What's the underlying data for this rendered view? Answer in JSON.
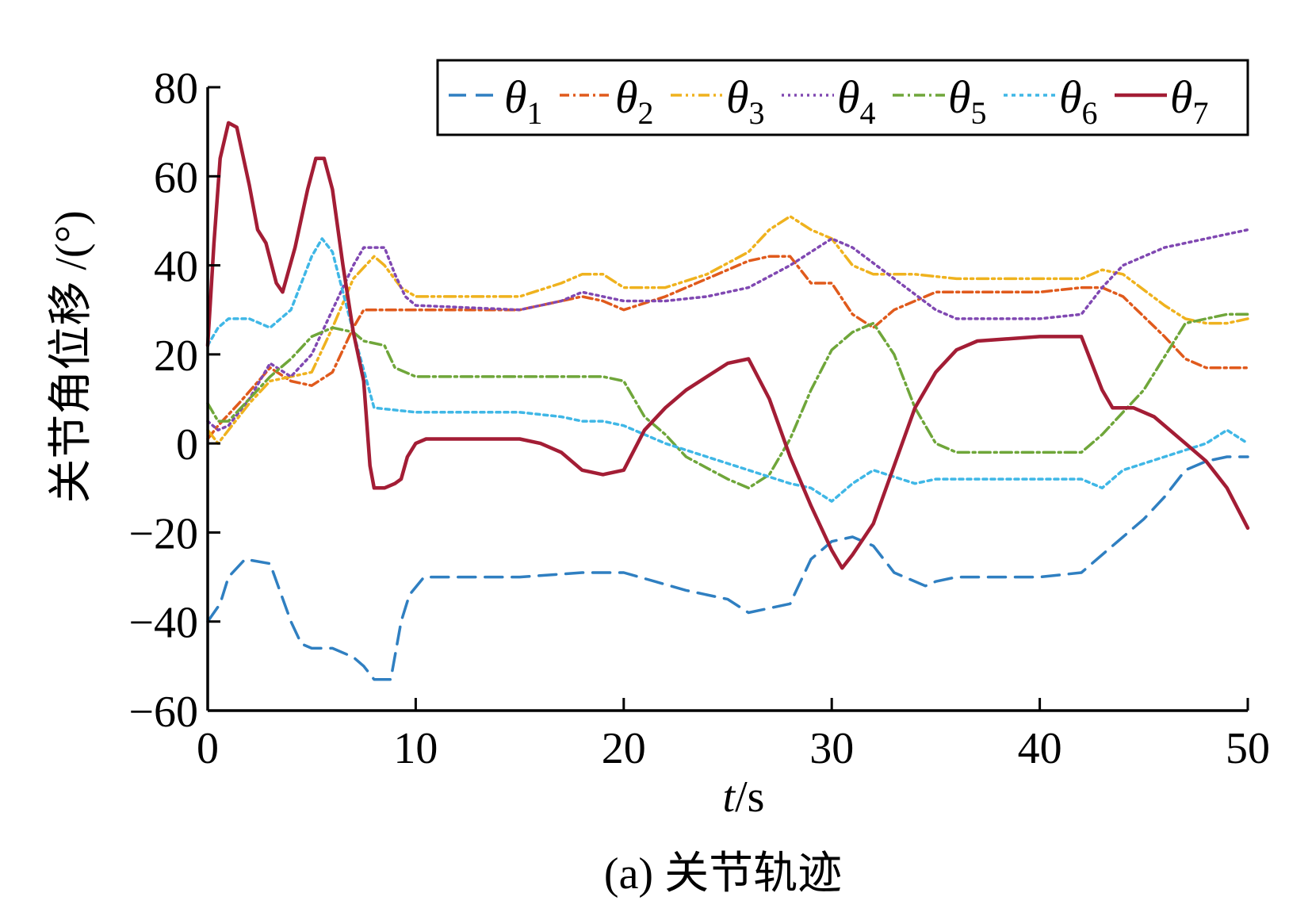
{
  "caption": "(a) 关节轨迹",
  "chart_data": {
    "type": "line",
    "title": "",
    "xlabel_italic": "t",
    "xlabel_rest": "/s",
    "ylabel": "关节角位移 /(°)",
    "xlim": [
      0,
      50
    ],
    "ylim": [
      -60,
      80
    ],
    "x_ticks": [
      0,
      10,
      20,
      30,
      40,
      50
    ],
    "y_ticks": [
      80,
      60,
      40,
      20,
      0,
      -20,
      -40,
      -60
    ],
    "x_tick_labels": [
      "0",
      "10",
      "20",
      "30",
      "40",
      "50"
    ],
    "y_tick_labels": [
      "80",
      "60",
      "40",
      "20",
      "0",
      "−20",
      "−40",
      "−60"
    ],
    "grid": false,
    "legend_position": "top-right",
    "series": [
      {
        "name": "θ1",
        "symbol": "θ",
        "subscript": "1",
        "color": "#2f7fc1",
        "dash": "22,12",
        "points": [
          [
            0,
            -40
          ],
          [
            0.6,
            -36
          ],
          [
            1,
            -30
          ],
          [
            1.8,
            -26
          ],
          [
            3,
            -27
          ],
          [
            4,
            -40
          ],
          [
            4.5,
            -45
          ],
          [
            5,
            -46
          ],
          [
            6,
            -46
          ],
          [
            7,
            -48
          ],
          [
            7.5,
            -50
          ],
          [
            8,
            -53
          ],
          [
            8.8,
            -53
          ],
          [
            9.3,
            -40
          ],
          [
            9.7,
            -34
          ],
          [
            10.4,
            -30
          ],
          [
            15,
            -30
          ],
          [
            18,
            -29
          ],
          [
            20,
            -29
          ],
          [
            21.5,
            -31
          ],
          [
            23,
            -33
          ],
          [
            25,
            -35
          ],
          [
            26,
            -38
          ],
          [
            27,
            -37
          ],
          [
            28,
            -36
          ],
          [
            29,
            -26
          ],
          [
            30,
            -22
          ],
          [
            31,
            -21
          ],
          [
            32,
            -23
          ],
          [
            33,
            -29
          ],
          [
            34.5,
            -32
          ],
          [
            35,
            -31
          ],
          [
            36,
            -30
          ],
          [
            40,
            -30
          ],
          [
            42,
            -29
          ],
          [
            43,
            -25
          ],
          [
            44,
            -21
          ],
          [
            45,
            -17
          ],
          [
            46,
            -12
          ],
          [
            47,
            -6
          ],
          [
            48,
            -4
          ],
          [
            49,
            -3
          ],
          [
            50,
            -3
          ]
        ]
      },
      {
        "name": "θ2",
        "symbol": "θ",
        "subscript": "2",
        "color": "#e05a1c",
        "dash": "12,5,3,5",
        "points": [
          [
            0,
            1
          ],
          [
            0.5,
            4
          ],
          [
            1.5,
            9
          ],
          [
            3,
            17
          ],
          [
            4,
            14
          ],
          [
            5,
            13
          ],
          [
            6,
            16
          ],
          [
            7,
            26
          ],
          [
            7.5,
            30
          ],
          [
            10,
            30
          ],
          [
            15,
            30
          ],
          [
            16,
            31
          ],
          [
            18,
            33
          ],
          [
            19,
            32
          ],
          [
            20,
            30
          ],
          [
            22,
            33
          ],
          [
            24,
            37
          ],
          [
            26,
            41
          ],
          [
            27,
            42
          ],
          [
            28,
            42
          ],
          [
            29,
            36
          ],
          [
            30,
            36
          ],
          [
            31,
            29
          ],
          [
            32,
            26
          ],
          [
            33,
            30
          ],
          [
            35,
            34
          ],
          [
            40,
            34
          ],
          [
            42,
            35
          ],
          [
            43,
            35
          ],
          [
            44,
            33
          ],
          [
            46,
            24
          ],
          [
            47,
            19
          ],
          [
            48,
            17
          ],
          [
            50,
            17
          ]
        ]
      },
      {
        "name": "θ3",
        "symbol": "θ",
        "subscript": "3",
        "color": "#efb21e",
        "dash": "14,5,3,5,3,5",
        "points": [
          [
            0,
            3
          ],
          [
            0.5,
            0
          ],
          [
            1,
            3
          ],
          [
            2,
            9
          ],
          [
            3,
            14
          ],
          [
            4,
            15
          ],
          [
            5,
            16
          ],
          [
            6,
            26
          ],
          [
            7,
            37
          ],
          [
            8,
            42
          ],
          [
            8.5,
            40
          ],
          [
            9.3,
            35
          ],
          [
            10,
            33
          ],
          [
            15,
            33
          ],
          [
            17,
            36
          ],
          [
            18,
            38
          ],
          [
            19,
            38
          ],
          [
            20,
            35
          ],
          [
            22,
            35
          ],
          [
            24,
            38
          ],
          [
            26,
            43
          ],
          [
            27,
            48
          ],
          [
            28,
            51
          ],
          [
            29,
            48
          ],
          [
            30,
            46
          ],
          [
            31,
            40
          ],
          [
            32,
            38
          ],
          [
            34,
            38
          ],
          [
            36,
            37
          ],
          [
            40,
            37
          ],
          [
            42,
            37
          ],
          [
            43,
            39
          ],
          [
            44,
            38
          ],
          [
            46,
            31
          ],
          [
            47,
            28
          ],
          [
            48,
            27
          ],
          [
            49,
            27
          ],
          [
            50,
            28
          ]
        ]
      },
      {
        "name": "θ4",
        "symbol": "θ",
        "subscript": "4",
        "color": "#8048b2",
        "dash": "3,5",
        "points": [
          [
            0,
            5
          ],
          [
            0.5,
            3
          ],
          [
            1,
            4
          ],
          [
            2,
            10
          ],
          [
            3,
            18
          ],
          [
            4,
            15
          ],
          [
            5,
            20
          ],
          [
            6,
            30
          ],
          [
            7,
            40
          ],
          [
            7.5,
            44
          ],
          [
            8.5,
            44
          ],
          [
            9,
            38
          ],
          [
            9.5,
            33
          ],
          [
            10,
            31
          ],
          [
            15,
            30
          ],
          [
            17,
            32
          ],
          [
            18,
            34
          ],
          [
            19,
            33
          ],
          [
            20,
            32
          ],
          [
            22,
            32
          ],
          [
            24,
            33
          ],
          [
            26,
            35
          ],
          [
            28,
            40
          ],
          [
            29,
            43
          ],
          [
            30,
            46
          ],
          [
            31,
            44
          ],
          [
            33,
            37
          ],
          [
            35,
            30
          ],
          [
            36,
            28
          ],
          [
            40,
            28
          ],
          [
            42,
            29
          ],
          [
            43,
            35
          ],
          [
            44,
            40
          ],
          [
            46,
            44
          ],
          [
            48,
            46
          ],
          [
            50,
            48
          ]
        ]
      },
      {
        "name": "θ5",
        "symbol": "θ",
        "subscript": "5",
        "color": "#6fa63a",
        "dash": "14,5,3,5",
        "points": [
          [
            0,
            9
          ],
          [
            0.5,
            5
          ],
          [
            1,
            5
          ],
          [
            2,
            10
          ],
          [
            3,
            15
          ],
          [
            4,
            19
          ],
          [
            5,
            24
          ],
          [
            6,
            26
          ],
          [
            7,
            25
          ],
          [
            7.5,
            23
          ],
          [
            8.5,
            22
          ],
          [
            9,
            17
          ],
          [
            10,
            15
          ],
          [
            15,
            15
          ],
          [
            19,
            15
          ],
          [
            20,
            14
          ],
          [
            21,
            6
          ],
          [
            22,
            2
          ],
          [
            23,
            -3
          ],
          [
            25,
            -8
          ],
          [
            26,
            -10
          ],
          [
            27,
            -7
          ],
          [
            28,
            1
          ],
          [
            29,
            12
          ],
          [
            30,
            21
          ],
          [
            31,
            25
          ],
          [
            32,
            27
          ],
          [
            33,
            20
          ],
          [
            34,
            8
          ],
          [
            35,
            0
          ],
          [
            36,
            -2
          ],
          [
            40,
            -2
          ],
          [
            42,
            -2
          ],
          [
            43,
            2
          ],
          [
            45,
            12
          ],
          [
            47,
            27
          ],
          [
            48,
            28
          ],
          [
            49,
            29
          ],
          [
            50,
            29
          ]
        ]
      },
      {
        "name": "θ6",
        "symbol": "θ",
        "subscript": "6",
        "color": "#3fb7e6",
        "dash": "5,5",
        "points": [
          [
            0,
            22
          ],
          [
            0.5,
            26
          ],
          [
            1,
            28
          ],
          [
            2,
            28
          ],
          [
            3,
            26
          ],
          [
            4,
            30
          ],
          [
            5,
            42
          ],
          [
            5.5,
            46
          ],
          [
            6,
            43
          ],
          [
            7,
            25
          ],
          [
            8,
            8
          ],
          [
            10,
            7
          ],
          [
            15,
            7
          ],
          [
            17,
            6
          ],
          [
            18,
            5
          ],
          [
            19,
            5
          ],
          [
            20,
            4
          ],
          [
            22,
            0
          ],
          [
            24,
            -3
          ],
          [
            26,
            -6
          ],
          [
            28,
            -9
          ],
          [
            29,
            -10
          ],
          [
            30,
            -13
          ],
          [
            31,
            -9
          ],
          [
            32,
            -6
          ],
          [
            34,
            -9
          ],
          [
            35,
            -8
          ],
          [
            40,
            -8
          ],
          [
            42,
            -8
          ],
          [
            43,
            -10
          ],
          [
            44,
            -6
          ],
          [
            46,
            -3
          ],
          [
            48,
            0
          ],
          [
            49,
            3
          ],
          [
            50,
            0
          ]
        ]
      },
      {
        "name": "θ7",
        "symbol": "θ",
        "subscript": "7",
        "color": "#a31d35",
        "dash": "",
        "points": [
          [
            0,
            22
          ],
          [
            0.3,
            45
          ],
          [
            0.6,
            64
          ],
          [
            1,
            72
          ],
          [
            1.4,
            71
          ],
          [
            2,
            58
          ],
          [
            2.4,
            48
          ],
          [
            2.8,
            45
          ],
          [
            3.3,
            36
          ],
          [
            3.6,
            34
          ],
          [
            4.2,
            44
          ],
          [
            4.8,
            57
          ],
          [
            5.2,
            64
          ],
          [
            5.6,
            64
          ],
          [
            6,
            57
          ],
          [
            6.5,
            40
          ],
          [
            7,
            25
          ],
          [
            7.5,
            14
          ],
          [
            7.8,
            -5
          ],
          [
            8,
            -10
          ],
          [
            8.5,
            -10
          ],
          [
            9,
            -9
          ],
          [
            9.3,
            -8
          ],
          [
            9.6,
            -3
          ],
          [
            10,
            0
          ],
          [
            10.5,
            1
          ],
          [
            15,
            1
          ],
          [
            16,
            0
          ],
          [
            17,
            -2
          ],
          [
            18,
            -6
          ],
          [
            19,
            -7
          ],
          [
            20,
            -6
          ],
          [
            21,
            3
          ],
          [
            22,
            8
          ],
          [
            23,
            12
          ],
          [
            24,
            15
          ],
          [
            25,
            18
          ],
          [
            26,
            19
          ],
          [
            27,
            10
          ],
          [
            28,
            -3
          ],
          [
            29,
            -14
          ],
          [
            30,
            -24
          ],
          [
            30.5,
            -28
          ],
          [
            31,
            -25
          ],
          [
            32,
            -18
          ],
          [
            33,
            -5
          ],
          [
            34,
            8
          ],
          [
            35,
            16
          ],
          [
            36,
            21
          ],
          [
            37,
            23
          ],
          [
            40,
            24
          ],
          [
            42,
            24
          ],
          [
            43,
            12
          ],
          [
            43.5,
            8
          ],
          [
            44.5,
            8
          ],
          [
            45.5,
            6
          ],
          [
            47,
            0
          ],
          [
            48,
            -4
          ],
          [
            49,
            -10
          ],
          [
            50,
            -19
          ]
        ]
      }
    ]
  }
}
